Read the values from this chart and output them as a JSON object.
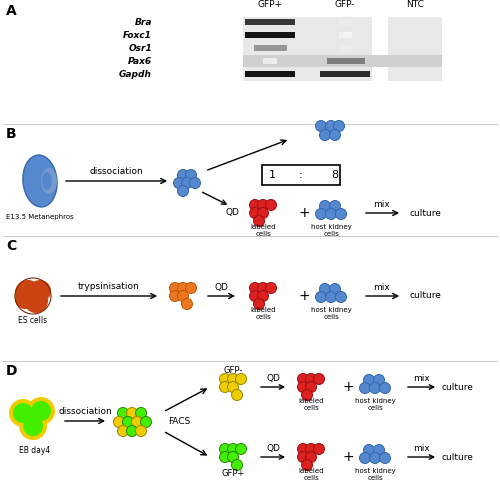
{
  "panel_A": {
    "label": "A",
    "gel_header": [
      "GFP+",
      "GFP-",
      "NTC"
    ],
    "genes": [
      "Bra",
      "Foxc1",
      "Osr1",
      "Pax6",
      "Gapdh"
    ],
    "band_intensities": {
      "Bra": [
        0.85,
        0.08,
        0.0
      ],
      "Foxc1": [
        1.0,
        0.05,
        0.0
      ],
      "Osr1": [
        0.45,
        0.08,
        0.0
      ],
      "Pax6": [
        0.08,
        0.55,
        0.0
      ],
      "Gapdh": [
        1.0,
        0.9,
        0.0
      ]
    },
    "gel_bg": [
      0.88,
      0.88,
      0.88
    ],
    "gel_bg_pax6": [
      0.78,
      0.78,
      0.78
    ]
  },
  "panel_B": {
    "label": "B",
    "kidney_color": "#5588cc",
    "kidney_label": "E13.5 Metanephros",
    "step1_text": "dissociation",
    "blue_dot_color": "#5588cc",
    "red_dot_color": "#dd2020",
    "final_label": "culture"
  },
  "panel_C": {
    "label": "C",
    "cell_color": "#cc4411",
    "cell_label": "ES cells",
    "step1_text": "trypsinisation",
    "orange_dot_color": "#ee7722",
    "red_dot_color": "#dd2020",
    "blue_dot_color": "#5588cc",
    "final_label": "culture"
  },
  "panel_D": {
    "label": "D",
    "eb_label": "EB day4",
    "step1_text": "dissociation",
    "facs_text": "FACS",
    "green_color": "#44ee00",
    "yellow_color": "#eecc00",
    "red_dot_color": "#dd2020",
    "blue_dot_color": "#5588cc",
    "gfp_minus_label": "GFP-",
    "gfp_plus_label": "GFP+",
    "final_label": "culture"
  },
  "divider_color": "#cccccc",
  "bg_color": "#ffffff"
}
